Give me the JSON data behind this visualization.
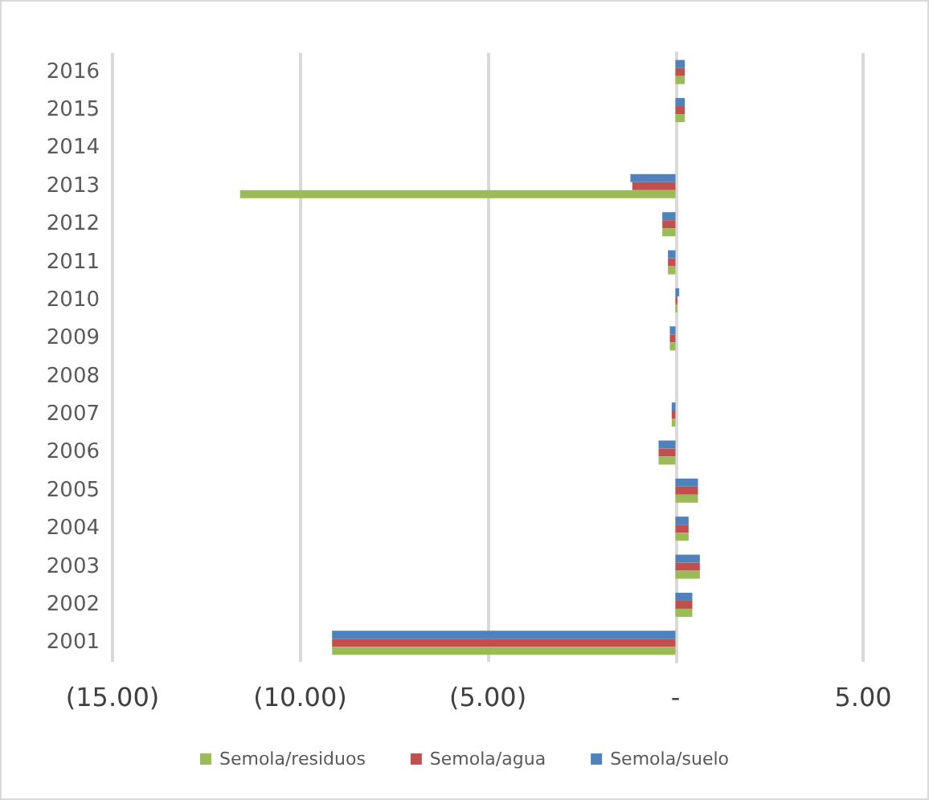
{
  "chart_data": {
    "type": "bar",
    "orientation": "horizontal",
    "categories": [
      "2016",
      "2015",
      "2014",
      "2013",
      "2012",
      "2011",
      "2010",
      "2009",
      "2008",
      "2007",
      "2006",
      "2005",
      "2004",
      "2003",
      "2002",
      "2001"
    ],
    "series": [
      {
        "name": "Semola/residuos",
        "color": "#9bbb59",
        "values": [
          0.25,
          0.25,
          0,
          -11.6,
          -0.35,
          -0.2,
          0.05,
          -0.15,
          0,
          -0.1,
          -0.45,
          0.6,
          0.35,
          0.65,
          0.45,
          -9.15
        ]
      },
      {
        "name": "Semola/agua",
        "color": "#c0504d",
        "values": [
          0.25,
          0.25,
          0,
          -1.15,
          -0.35,
          -0.2,
          0.05,
          -0.15,
          0,
          -0.1,
          -0.45,
          0.6,
          0.35,
          0.65,
          0.45,
          -9.15
        ]
      },
      {
        "name": "Semola/suelo",
        "color": "#4f81bd",
        "values": [
          0.25,
          0.25,
          0,
          -1.2,
          -0.35,
          -0.2,
          0.1,
          -0.15,
          0,
          -0.1,
          -0.45,
          0.6,
          0.35,
          0.65,
          0.45,
          -9.15
        ]
      }
    ],
    "xlim": [
      -15,
      5
    ],
    "xticks": [
      {
        "value": -15,
        "label": "(15.00)"
      },
      {
        "value": -10,
        "label": "(10.00)"
      },
      {
        "value": -5,
        "label": "(5.00)"
      },
      {
        "value": 0,
        "label": "-"
      },
      {
        "value": 5,
        "label": "5.00"
      }
    ],
    "grid": "x",
    "legend": "bottom"
  }
}
